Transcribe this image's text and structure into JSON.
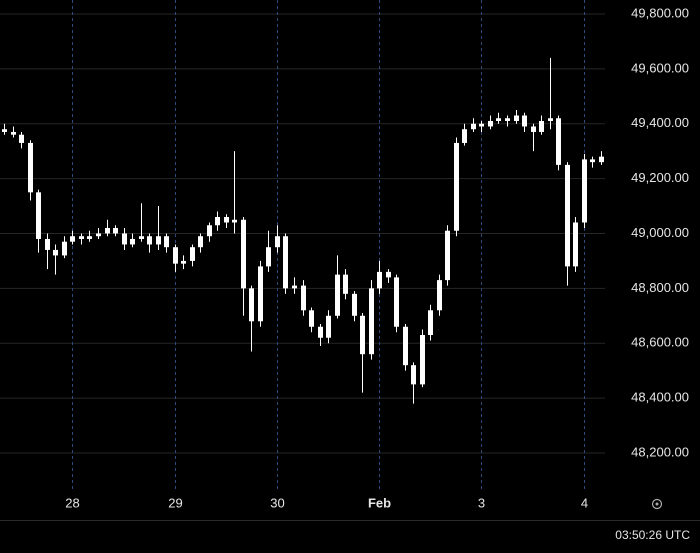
{
  "chart_data": {
    "type": "candlestick",
    "x": [
      -16,
      -14,
      -12,
      -10,
      -8,
      -6,
      -4,
      -2,
      0,
      2,
      4,
      6,
      8,
      10,
      12,
      14,
      16,
      18,
      20,
      22,
      24,
      26,
      28,
      30,
      32,
      34,
      36,
      38,
      40,
      42,
      44,
      46,
      48,
      50,
      52,
      54,
      56,
      58,
      60,
      62,
      64,
      66,
      68,
      70,
      72,
      74,
      76,
      78,
      80,
      82,
      84,
      86,
      88,
      90,
      92,
      94,
      96,
      98,
      100,
      102,
      104,
      106,
      108,
      110,
      112,
      114,
      116,
      118,
      120,
      122,
      124
    ],
    "open": [
      49380,
      49370,
      49360,
      49330,
      49150,
      48980,
      48940,
      48920,
      48970,
      48990,
      48980,
      48990,
      49000,
      49020,
      49000,
      48960,
      48980,
      48990,
      48960,
      48990,
      48950,
      48890,
      48900,
      48950,
      48990,
      49030,
      49060,
      49040,
      49050,
      48800,
      48680,
      48880,
      48950,
      48990,
      48800,
      48810,
      48720,
      48660,
      48620,
      48700,
      48850,
      48780,
      48700,
      48560,
      48800,
      48860,
      48840,
      48660,
      48520,
      48450,
      48630,
      48720,
      48830,
      49010,
      49330,
      49380,
      49400,
      49390,
      49410,
      49420,
      49410,
      49430,
      49390,
      49370,
      49410,
      49420,
      49250,
      48880,
      49040,
      49270,
      49260
    ],
    "high": [
      49400,
      49390,
      49370,
      49340,
      49160,
      49000,
      48960,
      48990,
      49010,
      49000,
      49010,
      49020,
      49050,
      49030,
      49020,
      49000,
      49110,
      49000,
      49100,
      49000,
      48960,
      48920,
      48960,
      49000,
      49040,
      49080,
      49070,
      49300,
      49060,
      48810,
      48900,
      49010,
      49030,
      49000,
      48840,
      48830,
      48730,
      48670,
      48720,
      48920,
      48870,
      48790,
      48710,
      48830,
      48900,
      48870,
      48850,
      48670,
      48530,
      48650,
      48740,
      48850,
      49030,
      49350,
      49400,
      49420,
      49410,
      49430,
      49440,
      49430,
      49450,
      49440,
      49400,
      49430,
      49640,
      49430,
      49260,
      49060,
      49290,
      49280,
      49300
    ],
    "low": [
      49360,
      49350,
      49310,
      49120,
      48930,
      48870,
      48850,
      48910,
      48960,
      48960,
      48970,
      48980,
      48990,
      48990,
      48940,
      48950,
      48970,
      48930,
      48940,
      48930,
      48860,
      48870,
      48880,
      48930,
      48970,
      49010,
      49020,
      49000,
      48700,
      48570,
      48660,
      48860,
      48930,
      48780,
      48780,
      48700,
      48640,
      48590,
      48600,
      48690,
      48760,
      48680,
      48420,
      48540,
      48780,
      48820,
      48640,
      48500,
      48380,
      48440,
      48610,
      48700,
      48810,
      48990,
      49320,
      49370,
      49370,
      49380,
      49400,
      49390,
      49400,
      49370,
      49300,
      49360,
      49380,
      49230,
      48810,
      48860,
      49020,
      49240,
      49250
    ],
    "close": [
      49370,
      49360,
      49330,
      49150,
      48980,
      48940,
      48920,
      48970,
      48990,
      48980,
      48990,
      49000,
      49020,
      49000,
      48960,
      48980,
      48990,
      48960,
      48990,
      48950,
      48890,
      48900,
      48950,
      48990,
      49030,
      49060,
      49040,
      49050,
      48800,
      48680,
      48880,
      48950,
      48990,
      48800,
      48810,
      48720,
      48660,
      48620,
      48700,
      48850,
      48780,
      48700,
      48560,
      48800,
      48860,
      48840,
      48660,
      48520,
      48450,
      48630,
      48720,
      48830,
      49010,
      49330,
      49380,
      49400,
      49390,
      49410,
      49420,
      49410,
      49430,
      49390,
      49370,
      49410,
      49420,
      49250,
      48880,
      49040,
      49270,
      49260,
      49280
    ],
    "color": "#ffffff",
    "xlim": [
      -17,
      125
    ],
    "xticks": [
      {
        "value": 0,
        "label": "28"
      },
      {
        "value": 24,
        "label": "29"
      },
      {
        "value": 48,
        "label": "30"
      },
      {
        "value": 72,
        "label": "Feb"
      },
      {
        "value": 96,
        "label": "3"
      },
      {
        "value": 120,
        "label": "4"
      }
    ],
    "ylim": [
      48065,
      49851
    ],
    "yticks": [
      {
        "value": 48200,
        "label": "48,200.00"
      },
      {
        "value": 48400,
        "label": "48,400.00"
      },
      {
        "value": 48600,
        "label": "48,600.00"
      },
      {
        "value": 48800,
        "label": "48,800.00"
      },
      {
        "value": 49000,
        "label": "49,000.00"
      },
      {
        "value": 49200,
        "label": "49,200.00"
      },
      {
        "value": 49400,
        "label": "49,400.00"
      },
      {
        "value": 49600,
        "label": "49,600.00"
      },
      {
        "value": 49800,
        "label": "49,800.00"
      }
    ],
    "grid": true,
    "clock": "03:50:26 UTC"
  }
}
